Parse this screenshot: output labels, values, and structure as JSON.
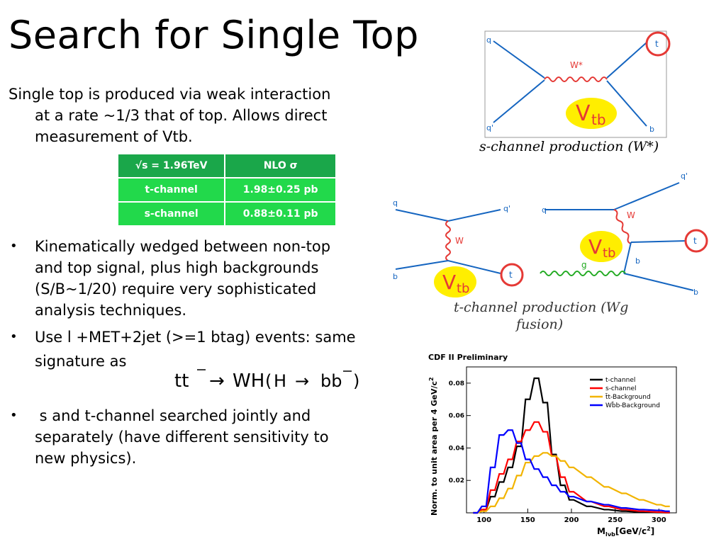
{
  "title": "Search for Single Top",
  "intro": {
    "line1": "Single top is produced via weak interaction",
    "line2": "at a rate ~1/3 that of top. Allows direct",
    "line3": "measurement of Vtb."
  },
  "xsec_table": {
    "header": [
      "√s = 1.96TeV",
      "NLO σ"
    ],
    "rows": [
      [
        "t-channel",
        "1.98±0.25 pb"
      ],
      [
        "s-channel",
        "0.88±0.11 pb"
      ]
    ]
  },
  "bullets": [
    {
      "symbol": "•",
      "lines": [
        "Kinematically wedged between non-top",
        "and top signal, plus high backgrounds",
        "(S/B~1/20) require very sophisticated",
        "analysis techniques."
      ]
    },
    {
      "symbol": "•",
      "lines": [
        "Use l +MET+2jet (>=1 btag) events: same",
        "signature as"
      ]
    },
    {
      "symbol": "•",
      "lines": [
        " s and t-channel searched jointly and",
        "separately (have different sensitivity to",
        "new physics)."
      ]
    }
  ],
  "formula": {
    "lhs": "tt",
    "arrow1": "→",
    "wh": "WH",
    "lpar": "(",
    "h": "H",
    "arrow2": "→",
    "bb": "bb",
    "rpar": ")"
  },
  "s_channel": {
    "caption": "s-channel production (W*)",
    "labels": {
      "q": "q",
      "qbar": "q'",
      "w": "W*",
      "t": "t",
      "b": "b",
      "vtb": "V",
      "vtb_sub": "tb"
    }
  },
  "t_channel": {
    "caption_line1": "t-channel production (Wg",
    "caption_line2": "fusion)",
    "labels": {
      "q": "q",
      "qprime": "q'",
      "w": "W",
      "b": "b",
      "t": "t",
      "g": "g",
      "vtb": "V",
      "vtb_sub": "tb"
    }
  },
  "chart_data": {
    "type": "line",
    "title": "CDF II Preliminary",
    "xlabel": "M",
    "xlabel_sub": "lνb",
    "xlabel_unit": "[GeV/c",
    "xlabel_unit_sup": "2",
    "xlabel_unit_end": "]",
    "ylabel": "Norm. to unit area per 4 GeV/c",
    "ylabel_sup": "2",
    "xlim": [
      80,
      320
    ],
    "ylim": [
      0,
      0.09
    ],
    "xticks": [
      100,
      150,
      200,
      250,
      300
    ],
    "yticks": [
      0.02,
      0.04,
      0.06,
      0.08
    ],
    "ytick_labels": [
      "0.02",
      "0.04",
      "0.06",
      "0.08"
    ],
    "legend_position": "top-right",
    "x": [
      90,
      100,
      110,
      120,
      130,
      140,
      150,
      160,
      170,
      180,
      190,
      200,
      220,
      240,
      260,
      280,
      300,
      310
    ],
    "series": [
      {
        "name": "t-channel",
        "color": "#000000",
        "values": [
          0,
          0.002,
          0.01,
          0.019,
          0.028,
          0.041,
          0.07,
          0.083,
          0.068,
          0.036,
          0.017,
          0.008,
          0.004,
          0.002,
          0.001,
          0.0005,
          0.0002,
          0.0001
        ]
      },
      {
        "name": "s-channel",
        "color": "#ff0000",
        "values": [
          0,
          0.002,
          0.014,
          0.024,
          0.033,
          0.044,
          0.051,
          0.056,
          0.05,
          0.035,
          0.022,
          0.013,
          0.007,
          0.004,
          0.002,
          0.001,
          0.0005,
          0.0002
        ]
      },
      {
        "name": "t̄t-Background",
        "color": "#f2b400",
        "values": [
          0,
          0.001,
          0.004,
          0.009,
          0.015,
          0.023,
          0.031,
          0.035,
          0.037,
          0.035,
          0.032,
          0.028,
          0.022,
          0.016,
          0.012,
          0.008,
          0.005,
          0.004
        ]
      },
      {
        "name": "Wb̄b-Background",
        "color": "#0000ff",
        "values": [
          0,
          0.004,
          0.028,
          0.048,
          0.051,
          0.043,
          0.033,
          0.027,
          0.022,
          0.017,
          0.013,
          0.01,
          0.007,
          0.005,
          0.003,
          0.002,
          0.0015,
          0.001
        ]
      }
    ]
  },
  "colors": {
    "table_header": "#1aa74a",
    "table_cell": "#22d94b",
    "feynman_line": "#1565c0",
    "boson": "#e53935",
    "vtb_bg": "#ffee00",
    "circle": "#e53935"
  }
}
